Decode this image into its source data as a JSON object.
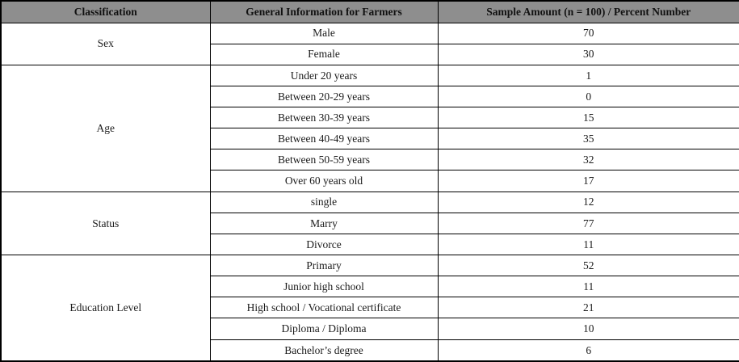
{
  "colors": {
    "header_bg": "#8e8e8e",
    "border": "#000000",
    "text": "#1b1b1b",
    "background": "#ffffff"
  },
  "table": {
    "headers": [
      "Classification",
      "General Information for Farmers",
      "Sample Amount (n = 100) / Percent Number"
    ],
    "groups": [
      {
        "classification": "Sex",
        "rows": [
          {
            "label": "Male",
            "value": "70"
          },
          {
            "label": "Female",
            "value": "30"
          }
        ]
      },
      {
        "classification": "Age",
        "rows": [
          {
            "label": "Under 20 years",
            "value": "1"
          },
          {
            "label": "Between 20-29 years",
            "value": "0"
          },
          {
            "label": "Between 30-39 years",
            "value": "15"
          },
          {
            "label": "Between 40-49 years",
            "value": "35"
          },
          {
            "label": "Between 50-59 years",
            "value": "32"
          },
          {
            "label": "Over 60 years old",
            "value": "17"
          }
        ]
      },
      {
        "classification": "Status",
        "rows": [
          {
            "label": "single",
            "value": "12"
          },
          {
            "label": "Marry",
            "value": "77"
          },
          {
            "label": "Divorce",
            "value": "11"
          }
        ]
      },
      {
        "classification": "Education Level",
        "rows": [
          {
            "label": "Primary",
            "value": "52"
          },
          {
            "label": "Junior high school",
            "value": "11"
          },
          {
            "label": "High school / Vocational certificate",
            "value": "21"
          },
          {
            "label": "Diploma / Diploma",
            "value": "10"
          },
          {
            "label": "Bachelor’s degree",
            "value": "6"
          }
        ]
      }
    ]
  },
  "chart_data": {
    "type": "table",
    "title": "General Information for Farmers (Sample Amount n = 100 / Percent Number)",
    "columns": [
      "Classification",
      "General Information for Farmers",
      "Sample Amount (n = 100) / Percent Number"
    ],
    "rows": [
      [
        "Sex",
        "Male",
        70
      ],
      [
        "Sex",
        "Female",
        30
      ],
      [
        "Age",
        "Under 20 years",
        1
      ],
      [
        "Age",
        "Between 20-29 years",
        0
      ],
      [
        "Age",
        "Between 30-39 years",
        15
      ],
      [
        "Age",
        "Between 40-49 years",
        35
      ],
      [
        "Age",
        "Between 50-59 years",
        32
      ],
      [
        "Age",
        "Over 60 years old",
        17
      ],
      [
        "Status",
        "single",
        12
      ],
      [
        "Status",
        "Marry",
        77
      ],
      [
        "Status",
        "Divorce",
        11
      ],
      [
        "Education Level",
        "Primary",
        52
      ],
      [
        "Education Level",
        "Junior high school",
        11
      ],
      [
        "Education Level",
        "High school / Vocational certificate",
        21
      ],
      [
        "Education Level",
        "Diploma / Diploma",
        10
      ],
      [
        "Education Level",
        "Bachelor’s degree",
        6
      ]
    ]
  }
}
